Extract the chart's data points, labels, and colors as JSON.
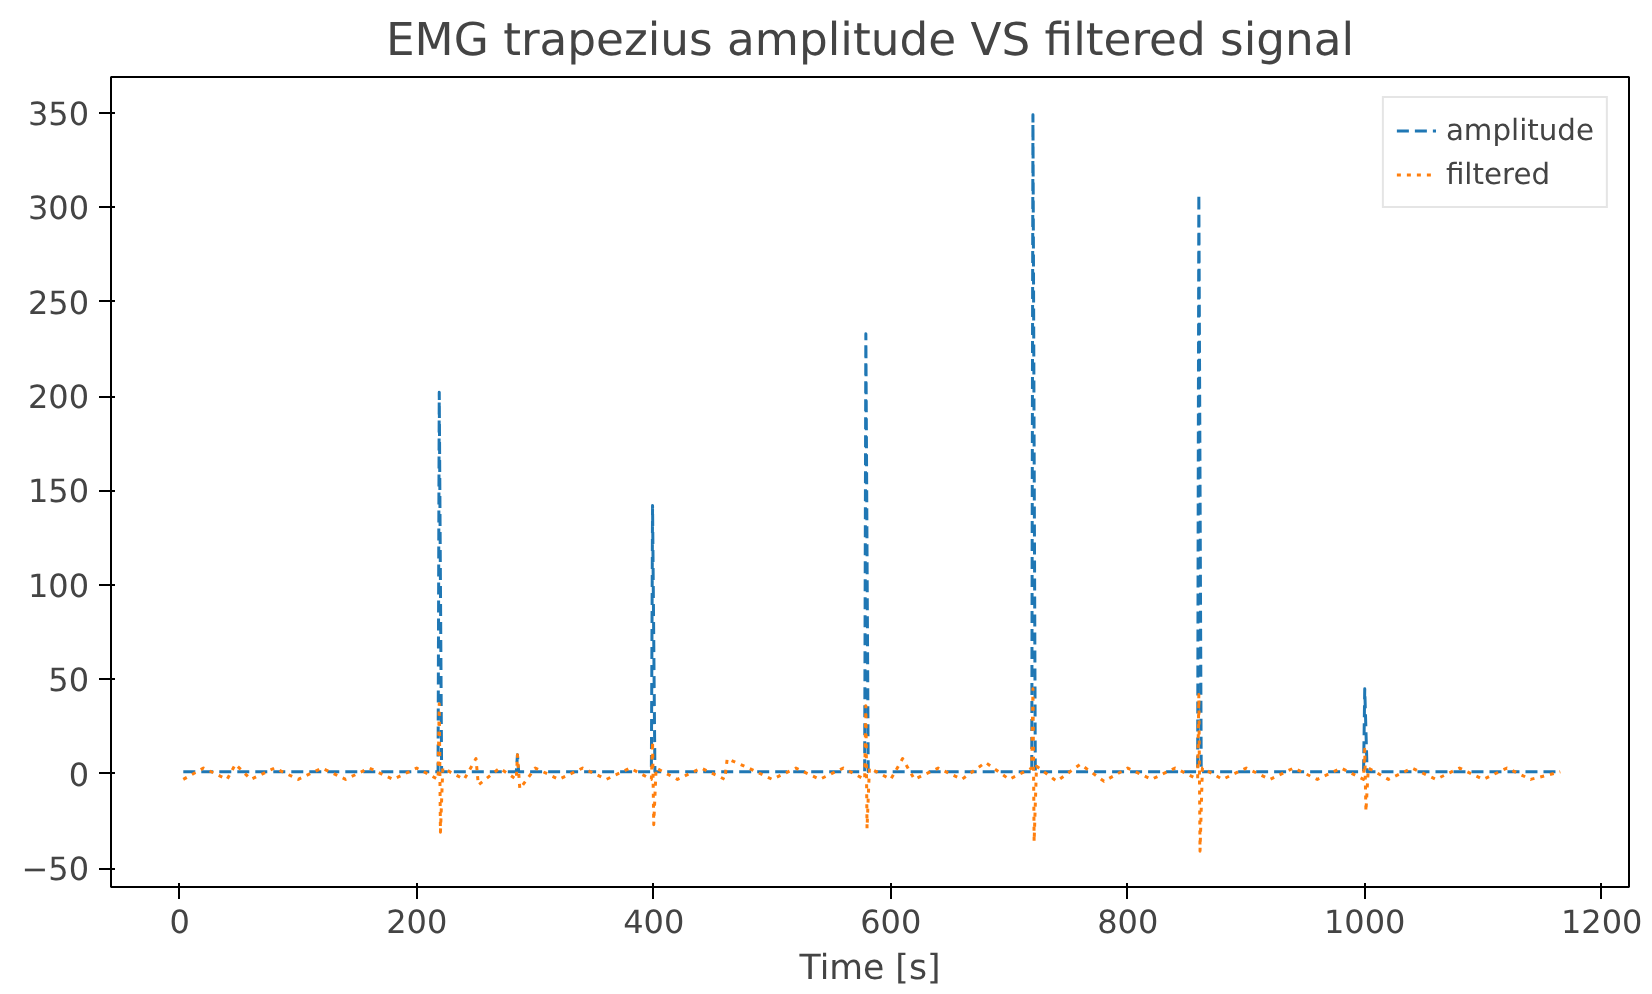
{
  "chart_data": {
    "type": "line",
    "title": "EMG trapezius amplitude VS filtered signal",
    "xlabel": "Time [s]",
    "xlim": [
      -58,
      1223
    ],
    "ylim": [
      -60,
      369
    ],
    "xticks": [
      0,
      200,
      400,
      600,
      800,
      1000,
      1200
    ],
    "yticks": [
      -50,
      0,
      50,
      100,
      150,
      200,
      250,
      300,
      350
    ],
    "grid": false,
    "legend": "top right",
    "series": [
      {
        "name": "amplitude",
        "color": "#1f77b4",
        "line_style": "dashed",
        "x": [
          3,
          100,
          218,
          219,
          221,
          284,
          285,
          286,
          398,
          399,
          401,
          578,
          579,
          581,
          719,
          720,
          722,
          859,
          860,
          862,
          999,
          1000,
          1002,
          1165
        ],
        "values": [
          1,
          1,
          1,
          202,
          1,
          1,
          10,
          1,
          1,
          142,
          1,
          1,
          233,
          1,
          1,
          349,
          1,
          1,
          307,
          1,
          1,
          45,
          1,
          1
        ]
      },
      {
        "name": "filtered",
        "color": "#ff7f0e",
        "line_style": "dotted",
        "x": [
          3,
          20,
          40,
          47,
          60,
          80,
          100,
          120,
          140,
          160,
          180,
          200,
          218,
          219,
          220,
          222,
          240,
          250,
          252,
          270,
          284,
          285,
          287,
          300,
          320,
          340,
          360,
          380,
          398,
          399,
          400,
          402,
          420,
          440,
          460,
          462,
          480,
          500,
          520,
          540,
          560,
          578,
          579,
          580,
          582,
          600,
          610,
          620,
          640,
          660,
          680,
          700,
          719,
          720,
          721,
          723,
          740,
          760,
          780,
          800,
          820,
          840,
          859,
          860,
          861,
          863,
          880,
          900,
          920,
          940,
          960,
          980,
          999,
          1000,
          1001,
          1003,
          1020,
          1040,
          1060,
          1080,
          1100,
          1120,
          1140,
          1165
        ],
        "values": [
          -3,
          3,
          -3,
          5,
          -3,
          3,
          -3,
          3,
          -3,
          3,
          -3,
          3,
          -3,
          37,
          -31,
          3,
          -3,
          8,
          -6,
          3,
          -3,
          10,
          -8,
          3,
          -3,
          3,
          -3,
          3,
          -3,
          17,
          -27,
          3,
          -3,
          3,
          -3,
          8,
          3,
          -3,
          3,
          -3,
          3,
          -3,
          36,
          -29,
          3,
          -3,
          8,
          -3,
          3,
          -3,
          6,
          -3,
          3,
          45,
          -36,
          4,
          -4,
          5,
          -4,
          3,
          -3,
          3,
          -3,
          42,
          -41,
          3,
          -3,
          3,
          -3,
          3,
          -3,
          3,
          -3,
          13,
          -20,
          3,
          -3,
          3,
          -3,
          3,
          -3,
          3,
          -3,
          1
        ]
      }
    ]
  }
}
